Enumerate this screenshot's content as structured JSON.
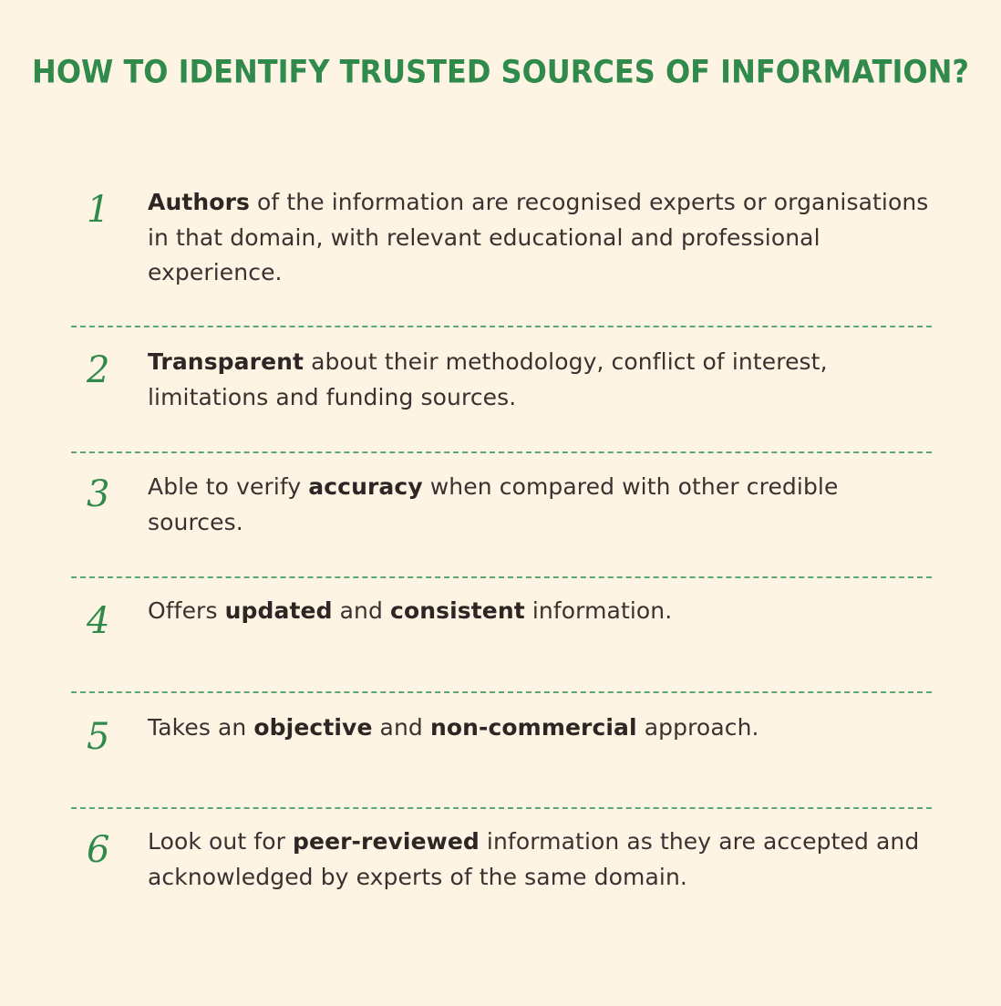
{
  "title": "HOW TO IDENTIFY TRUSTED SOURCES OF INFORMATION?",
  "colors": {
    "background": "#fdf4e3",
    "accent_green": "#2f8a4c",
    "text": "#3a3230"
  },
  "items": [
    {
      "number": "1",
      "parts": [
        {
          "text": "Authors",
          "bold": true
        },
        {
          "text": " of the information are recognised experts or organisations in that domain, with relevant educational and professional experience.",
          "bold": false
        }
      ]
    },
    {
      "number": "2",
      "parts": [
        {
          "text": "Transparent",
          "bold": true
        },
        {
          "text": " about their methodology, conflict of interest, limitations and funding sources.",
          "bold": false
        }
      ]
    },
    {
      "number": "3",
      "parts": [
        {
          "text": "Able to verify ",
          "bold": false
        },
        {
          "text": "accuracy",
          "bold": true
        },
        {
          "text": " when compared with other credible sources.",
          "bold": false
        }
      ]
    },
    {
      "number": "4",
      "parts": [
        {
          "text": "Offers ",
          "bold": false
        },
        {
          "text": "updated",
          "bold": true
        },
        {
          "text": " and ",
          "bold": false
        },
        {
          "text": "consistent",
          "bold": true
        },
        {
          "text": " information.",
          "bold": false
        }
      ]
    },
    {
      "number": "5",
      "parts": [
        {
          "text": "Takes an ",
          "bold": false
        },
        {
          "text": "objective",
          "bold": true
        },
        {
          "text": " and ",
          "bold": false
        },
        {
          "text": "non-commercial",
          "bold": true
        },
        {
          "text": " approach.",
          "bold": false
        }
      ]
    },
    {
      "number": "6",
      "parts": [
        {
          "text": "Look out for ",
          "bold": false
        },
        {
          "text": "peer-reviewed",
          "bold": true
        },
        {
          "text": " information as they are accepted and acknowledged by experts of the same domain.",
          "bold": false
        }
      ]
    }
  ]
}
